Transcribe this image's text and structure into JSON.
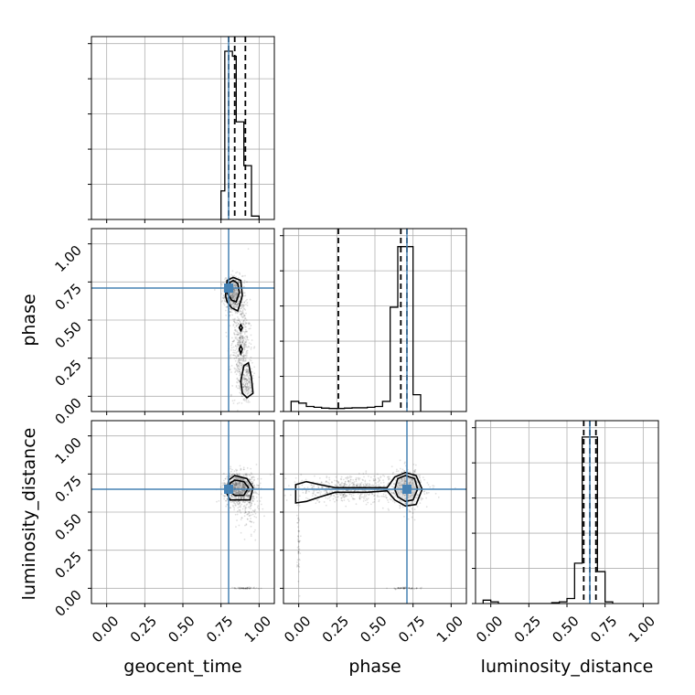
{
  "chart_data": {
    "type": "corner",
    "parameters": [
      "geocent_time",
      "phase",
      "luminosity_distance"
    ],
    "axis_range": [
      -0.1,
      1.1
    ],
    "ticks": [
      0.0,
      0.25,
      0.5,
      0.75,
      1.0
    ],
    "tick_labels": [
      "0.00",
      "0.25",
      "0.50",
      "0.75",
      "1.00"
    ],
    "grid": true,
    "colors": {
      "truth": "#4682b4",
      "hist": "#000000",
      "contour": "#000000",
      "samples": "#000000"
    },
    "truths": {
      "geocent_time": 0.8,
      "phase": 0.71,
      "luminosity_distance": 0.65
    },
    "quantiles": {
      "geocent_time": [
        0.8,
        0.84,
        0.91
      ],
      "phase": [
        0.26,
        0.67,
        0.71
      ],
      "luminosity_distance": [
        0.61,
        0.65,
        0.69
      ]
    },
    "histograms": {
      "geocent_time": {
        "edges": [
          0.75,
          0.775,
          0.8,
          0.825,
          0.85,
          0.875,
          0.9,
          0.925,
          0.95,
          0.975,
          1.0
        ],
        "counts": [
          0.17,
          1.0,
          1.0,
          0.97,
          0.58,
          0.58,
          0.32,
          0.32,
          0.02,
          0.02
        ]
      },
      "phase": {
        "edges": [
          -0.05,
          0.0,
          0.05,
          0.1,
          0.15,
          0.2,
          0.25,
          0.3,
          0.35,
          0.4,
          0.45,
          0.5,
          0.55,
          0.6,
          0.65,
          0.7,
          0.75,
          0.8
        ],
        "counts": [
          0.06,
          0.05,
          0.03,
          0.025,
          0.02,
          0.018,
          0.018,
          0.02,
          0.022,
          0.022,
          0.025,
          0.03,
          0.06,
          0.62,
          0.98,
          0.98,
          0.1
        ]
      },
      "luminosity_distance": {
        "edges": [
          -0.05,
          0.0,
          0.05,
          0.1,
          0.15,
          0.2,
          0.25,
          0.3,
          0.35,
          0.4,
          0.45,
          0.5,
          0.55,
          0.6,
          0.65,
          0.7,
          0.75,
          0.8
        ],
        "counts": [
          0.02,
          0.01,
          0.0,
          0.0,
          0.0,
          0.0,
          0.0,
          0.0,
          0.0,
          0.005,
          0.01,
          0.03,
          0.24,
          0.99,
          0.99,
          0.19,
          0.01
        ]
      }
    },
    "contours": {
      "phase_vs_geocent_time": [
        [
          [
            0.78,
            0.66
          ],
          [
            0.79,
            0.76
          ],
          [
            0.83,
            0.78
          ],
          [
            0.88,
            0.76
          ],
          [
            0.89,
            0.66
          ],
          [
            0.86,
            0.56
          ],
          [
            0.82,
            0.58
          ],
          [
            0.79,
            0.62
          ]
        ],
        [
          [
            0.79,
            0.68
          ],
          [
            0.8,
            0.74
          ],
          [
            0.83,
            0.76
          ],
          [
            0.86,
            0.74
          ],
          [
            0.87,
            0.68
          ],
          [
            0.85,
            0.62
          ],
          [
            0.82,
            0.63
          ]
        ],
        [
          [
            0.88,
            0.1
          ],
          [
            0.9,
            0.2
          ],
          [
            0.93,
            0.22
          ],
          [
            0.95,
            0.12
          ],
          [
            0.96,
            0.02
          ],
          [
            0.92,
            -0.01
          ],
          [
            0.89,
            0.02
          ]
        ],
        [
          [
            0.87,
            0.45
          ],
          [
            0.88,
            0.47
          ],
          [
            0.89,
            0.45
          ],
          [
            0.88,
            0.43
          ]
        ],
        [
          [
            0.87,
            0.31
          ],
          [
            0.88,
            0.33
          ],
          [
            0.89,
            0.31
          ],
          [
            0.88,
            0.28
          ]
        ]
      ],
      "luminosity_distance_vs_geocent_time": [
        [
          [
            0.79,
            0.62
          ],
          [
            0.8,
            0.71
          ],
          [
            0.84,
            0.74
          ],
          [
            0.92,
            0.72
          ],
          [
            0.96,
            0.66
          ],
          [
            0.94,
            0.58
          ],
          [
            0.86,
            0.58
          ],
          [
            0.81,
            0.58
          ]
        ],
        [
          [
            0.8,
            0.64
          ],
          [
            0.81,
            0.69
          ],
          [
            0.84,
            0.71
          ],
          [
            0.9,
            0.7
          ],
          [
            0.93,
            0.66
          ],
          [
            0.9,
            0.61
          ],
          [
            0.84,
            0.61
          ]
        ]
      ],
      "luminosity_distance_vs_phase": [
        [
          [
            -0.02,
            0.56
          ],
          [
            -0.02,
            0.68
          ],
          [
            0.05,
            0.7
          ],
          [
            0.14,
            0.68
          ],
          [
            0.24,
            0.66
          ],
          [
            0.33,
            0.66
          ],
          [
            0.45,
            0.66
          ],
          [
            0.58,
            0.66
          ],
          [
            0.63,
            0.73
          ],
          [
            0.7,
            0.76
          ],
          [
            0.77,
            0.74
          ],
          [
            0.81,
            0.65
          ],
          [
            0.77,
            0.55
          ],
          [
            0.7,
            0.54
          ],
          [
            0.63,
            0.58
          ],
          [
            0.58,
            0.64
          ],
          [
            0.45,
            0.63
          ],
          [
            0.33,
            0.63
          ],
          [
            0.24,
            0.63
          ],
          [
            0.14,
            0.6
          ],
          [
            0.05,
            0.57
          ]
        ],
        [
          [
            0.63,
            0.65
          ],
          [
            0.65,
            0.72
          ],
          [
            0.7,
            0.74
          ],
          [
            0.76,
            0.72
          ],
          [
            0.78,
            0.65
          ],
          [
            0.75,
            0.58
          ],
          [
            0.7,
            0.57
          ],
          [
            0.65,
            0.6
          ]
        ]
      ]
    },
    "sample_clusters": {
      "phase_vs_geocent_time": [
        {
          "x": 0.83,
          "y": 0.67,
          "sx": 0.03,
          "sy": 0.06,
          "n": 550
        },
        {
          "x": 0.88,
          "y": 0.35,
          "sx": 0.03,
          "sy": 0.18,
          "n": 520
        },
        {
          "x": 0.92,
          "y": 0.1,
          "sx": 0.025,
          "sy": 0.06,
          "n": 200
        }
      ],
      "luminosity_distance_vs_geocent_time": [
        {
          "x": 0.87,
          "y": 0.66,
          "sx": 0.05,
          "sy": 0.05,
          "n": 900
        },
        {
          "x": 0.93,
          "y": 0.55,
          "sx": 0.04,
          "sy": 0.09,
          "n": 150
        },
        {
          "x": 0.9,
          "y": 0.0,
          "sx": 0.05,
          "sy": 0.003,
          "n": 60
        }
      ],
      "luminosity_distance_vs_phase": [
        {
          "x": 0.36,
          "y": 0.65,
          "sx": 0.22,
          "sy": 0.04,
          "n": 650
        },
        {
          "x": 0.71,
          "y": 0.66,
          "sx": 0.05,
          "sy": 0.06,
          "n": 450
        },
        {
          "x": 0.0,
          "y": 0.3,
          "sx": 0.005,
          "sy": 0.18,
          "n": 50
        },
        {
          "x": 0.7,
          "y": 0.0,
          "sx": 0.05,
          "sy": 0.003,
          "n": 60
        }
      ]
    }
  }
}
